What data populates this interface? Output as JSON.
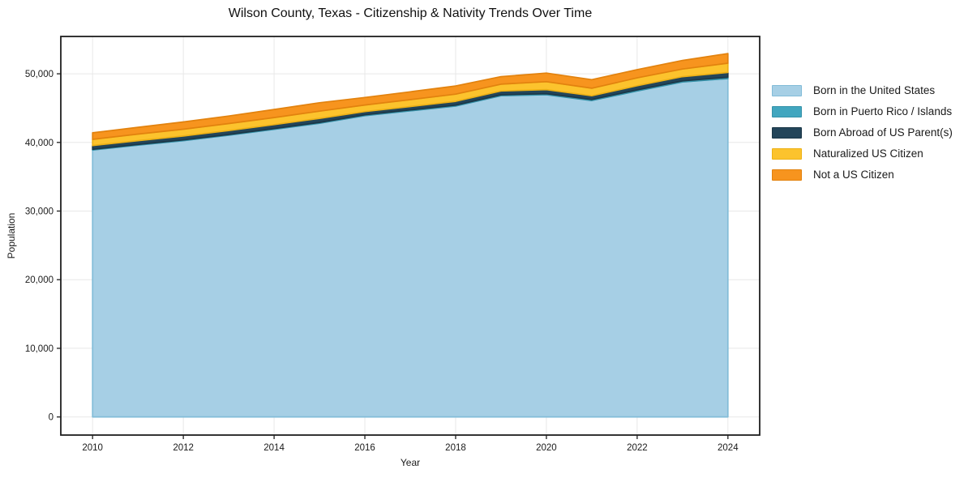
{
  "chart_data": {
    "type": "area",
    "stacked": true,
    "title": "Wilson County, Texas - Citizenship & Nativity Trends Over Time",
    "xlabel": "Year",
    "ylabel": "Population",
    "x": [
      2010,
      2011,
      2012,
      2013,
      2014,
      2015,
      2016,
      2017,
      2018,
      2019,
      2020,
      2021,
      2022,
      2023,
      2024
    ],
    "series": [
      {
        "name": "Born in the United States",
        "color": "#a6cfe5",
        "edge": "#82bcd8",
        "values": [
          38900,
          39600,
          40250,
          41050,
          41900,
          42800,
          43900,
          44600,
          45300,
          46800,
          46950,
          46100,
          47500,
          48800,
          49300
        ]
      },
      {
        "name": "Born in Puerto Rico / Islands",
        "color": "#41a6bf",
        "edge": "#3592a9",
        "values": [
          100,
          100,
          110,
          110,
          120,
          120,
          120,
          130,
          130,
          140,
          150,
          150,
          160,
          170,
          200
        ]
      },
      {
        "name": "Born Abroad of US Parent(s)",
        "color": "#23455a",
        "edge": "#1b3747",
        "values": [
          550,
          560,
          570,
          580,
          580,
          590,
          480,
          500,
          550,
          550,
          600,
          550,
          600,
          620,
          700
        ]
      },
      {
        "name": "Naturalized US Citizen",
        "color": "#fcc32d",
        "edge": "#edb116",
        "values": [
          900,
          950,
          990,
          1010,
          1020,
          1050,
          950,
          1000,
          1050,
          1000,
          1150,
          1100,
          1150,
          1100,
          1350
        ]
      },
      {
        "name": "Not a US Citizen",
        "color": "#f7941e",
        "edge": "#e2820e",
        "values": [
          950,
          1000,
          1060,
          1100,
          1180,
          1220,
          1100,
          1150,
          1200,
          1100,
          1250,
          1250,
          1200,
          1250,
          1400
        ]
      }
    ],
    "xlim": [
      2009.3,
      2024.7
    ],
    "ylim": [
      -2640,
      55440
    ],
    "xticks": {
      "values": [
        2010,
        2012,
        2014,
        2016,
        2018,
        2020,
        2022,
        2024
      ],
      "labels": [
        "2010",
        "2012",
        "2014",
        "2016",
        "2018",
        "2020",
        "2022",
        "2024"
      ]
    },
    "yticks": {
      "values": [
        0,
        10000,
        20000,
        30000,
        40000,
        50000
      ],
      "labels": [
        "0",
        "10,000",
        "20,000",
        "30,000",
        "40,000",
        "50,000"
      ]
    },
    "grid": true,
    "legend_position": "right",
    "colors": {
      "grid": "#e8e8e8",
      "frame": "#1f1f1f",
      "tick_text": "#1a1a1a",
      "background": "#ffffff"
    }
  }
}
